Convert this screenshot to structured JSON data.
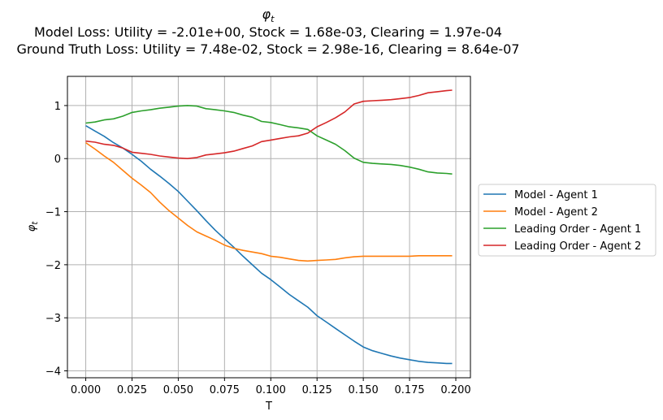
{
  "chart_data": {
    "type": "line",
    "title_symbol": "φ",
    "title_symbol_sub": "t",
    "title_line2": "Model Loss: Utility = -2.01e+00, Stock = 1.68e-03, Clearing = 1.97e-04",
    "title_line3": "Ground Truth Loss: Utility = 7.48e-02, Stock = 2.98e-16, Clearing = 8.64e-07",
    "xlabel": "T",
    "ylabel_symbol": "φ",
    "ylabel_sub": "t",
    "xlim": [
      -0.0099,
      0.2079
    ],
    "ylim": [
      -4.13,
      1.55
    ],
    "xticks": [
      0.0,
      0.025,
      0.05,
      0.075,
      0.1,
      0.125,
      0.15,
      0.175,
      0.2
    ],
    "xtick_labels": [
      "0.000",
      "0.025",
      "0.050",
      "0.075",
      "0.100",
      "0.125",
      "0.150",
      "0.175",
      "0.200"
    ],
    "yticks": [
      -4,
      -3,
      -2,
      -1,
      0,
      1
    ],
    "ytick_labels": [
      "−4",
      "−3",
      "−2",
      "−1",
      "0",
      "1"
    ],
    "grid": true,
    "legend_position": "outside-right",
    "series": [
      {
        "name": "Model - Agent 1",
        "color": "#1f77b4",
        "x": [
          0.0,
          0.005,
          0.01,
          0.015,
          0.02,
          0.025,
          0.03,
          0.035,
          0.04,
          0.045,
          0.05,
          0.055,
          0.06,
          0.065,
          0.07,
          0.075,
          0.08,
          0.085,
          0.09,
          0.095,
          0.1,
          0.105,
          0.11,
          0.115,
          0.12,
          0.125,
          0.13,
          0.135,
          0.14,
          0.145,
          0.15,
          0.155,
          0.16,
          0.165,
          0.17,
          0.175,
          0.18,
          0.185,
          0.19,
          0.195,
          0.198
        ],
        "y": [
          0.62,
          0.52,
          0.42,
          0.3,
          0.2,
          0.08,
          -0.05,
          -0.2,
          -0.33,
          -0.47,
          -0.62,
          -0.8,
          -0.98,
          -1.17,
          -1.35,
          -1.51,
          -1.67,
          -1.84,
          -2.0,
          -2.16,
          -2.28,
          -2.42,
          -2.56,
          -2.68,
          -2.8,
          -2.96,
          -3.08,
          -3.2,
          -3.32,
          -3.44,
          -3.55,
          -3.62,
          -3.67,
          -3.72,
          -3.76,
          -3.79,
          -3.82,
          -3.84,
          -3.85,
          -3.86,
          -3.86
        ]
      },
      {
        "name": "Model - Agent 2",
        "color": "#ff7f0e",
        "x": [
          0.0,
          0.005,
          0.01,
          0.015,
          0.02,
          0.025,
          0.03,
          0.035,
          0.04,
          0.045,
          0.05,
          0.055,
          0.06,
          0.065,
          0.07,
          0.075,
          0.08,
          0.085,
          0.09,
          0.095,
          0.1,
          0.105,
          0.11,
          0.115,
          0.12,
          0.125,
          0.13,
          0.135,
          0.14,
          0.145,
          0.15,
          0.155,
          0.16,
          0.165,
          0.17,
          0.175,
          0.18,
          0.185,
          0.19,
          0.195,
          0.198
        ],
        "y": [
          0.3,
          0.18,
          0.05,
          -0.07,
          -0.22,
          -0.37,
          -0.5,
          -0.64,
          -0.82,
          -0.98,
          -1.12,
          -1.26,
          -1.38,
          -1.46,
          -1.54,
          -1.63,
          -1.69,
          -1.73,
          -1.76,
          -1.79,
          -1.84,
          -1.86,
          -1.89,
          -1.92,
          -1.93,
          -1.92,
          -1.91,
          -1.9,
          -1.87,
          -1.85,
          -1.84,
          -1.84,
          -1.84,
          -1.84,
          -1.84,
          -1.84,
          -1.83,
          -1.83,
          -1.83,
          -1.83,
          -1.83
        ]
      },
      {
        "name": "Leading Order - Agent 1",
        "color": "#2ca02c",
        "x": [
          0.0,
          0.005,
          0.01,
          0.015,
          0.02,
          0.025,
          0.03,
          0.035,
          0.04,
          0.045,
          0.05,
          0.055,
          0.06,
          0.065,
          0.07,
          0.075,
          0.08,
          0.085,
          0.09,
          0.095,
          0.1,
          0.105,
          0.11,
          0.115,
          0.12,
          0.125,
          0.13,
          0.135,
          0.14,
          0.145,
          0.15,
          0.155,
          0.16,
          0.165,
          0.17,
          0.175,
          0.18,
          0.185,
          0.19,
          0.195,
          0.198
        ],
        "y": [
          0.67,
          0.69,
          0.73,
          0.75,
          0.8,
          0.87,
          0.9,
          0.92,
          0.95,
          0.97,
          0.99,
          1.0,
          0.99,
          0.94,
          0.92,
          0.9,
          0.87,
          0.82,
          0.78,
          0.7,
          0.68,
          0.64,
          0.6,
          0.58,
          0.55,
          0.43,
          0.35,
          0.27,
          0.15,
          0.01,
          -0.07,
          -0.09,
          -0.1,
          -0.11,
          -0.13,
          -0.16,
          -0.2,
          -0.25,
          -0.27,
          -0.28,
          -0.29
        ]
      },
      {
        "name": "Leading Order - Agent 2",
        "color": "#d62728",
        "x": [
          0.0,
          0.005,
          0.01,
          0.015,
          0.02,
          0.025,
          0.03,
          0.035,
          0.04,
          0.045,
          0.05,
          0.055,
          0.06,
          0.065,
          0.07,
          0.075,
          0.08,
          0.085,
          0.09,
          0.095,
          0.1,
          0.105,
          0.11,
          0.115,
          0.12,
          0.125,
          0.13,
          0.135,
          0.14,
          0.145,
          0.15,
          0.155,
          0.16,
          0.165,
          0.17,
          0.175,
          0.18,
          0.185,
          0.19,
          0.195,
          0.198
        ],
        "y": [
          0.33,
          0.31,
          0.27,
          0.25,
          0.2,
          0.12,
          0.1,
          0.08,
          0.05,
          0.03,
          0.01,
          0.0,
          0.02,
          0.07,
          0.09,
          0.11,
          0.14,
          0.19,
          0.24,
          0.32,
          0.35,
          0.38,
          0.41,
          0.43,
          0.48,
          0.6,
          0.68,
          0.77,
          0.88,
          1.03,
          1.08,
          1.09,
          1.1,
          1.11,
          1.13,
          1.15,
          1.19,
          1.24,
          1.26,
          1.28,
          1.29
        ]
      }
    ]
  }
}
